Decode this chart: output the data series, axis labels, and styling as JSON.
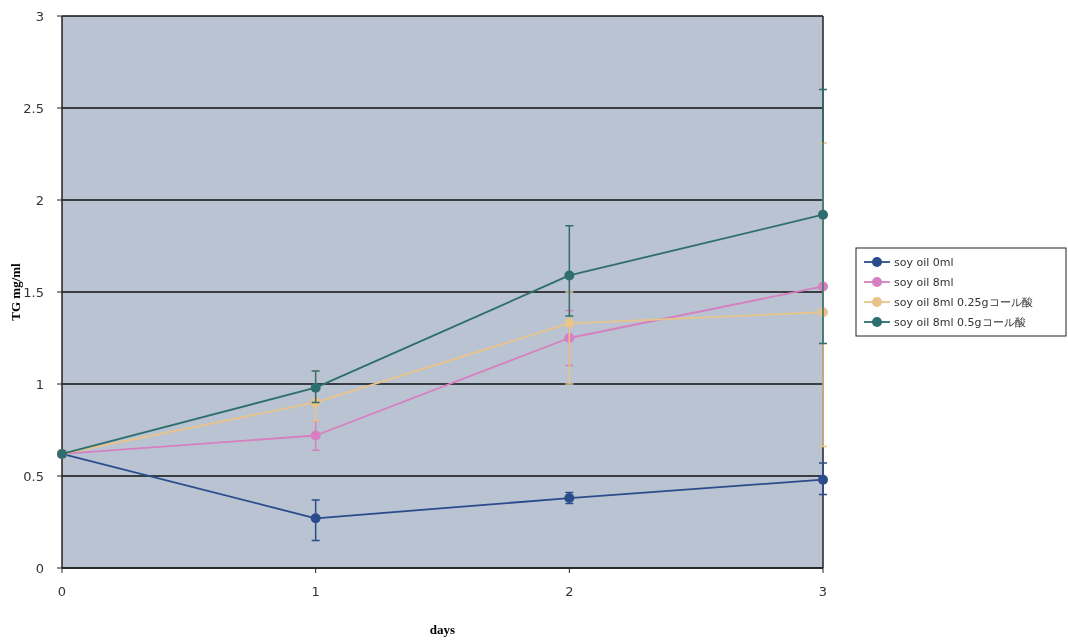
{
  "chart_data": {
    "type": "line",
    "xlabel": "days",
    "ylabel": "TG mg/ml",
    "x": [
      0,
      1,
      2,
      3
    ],
    "xlim": [
      0,
      3
    ],
    "xticks": [
      0,
      1,
      2,
      3
    ],
    "ylim": [
      0,
      3
    ],
    "yticks": [
      0,
      0.5,
      1,
      1.5,
      2,
      2.5,
      3
    ],
    "grid": "y",
    "legend": "right",
    "marker": "circle",
    "series": [
      {
        "name": "soy oil 0ml",
        "color": "#2b4c8c",
        "values": [
          0.62,
          0.27,
          0.38,
          0.48
        ],
        "errors": [
          null,
          [
            0.15,
            0.37
          ],
          [
            0.35,
            0.41
          ],
          [
            0.4,
            0.57
          ]
        ]
      },
      {
        "name": "soy oil 8ml",
        "color": "#d77fc0",
        "values": [
          0.62,
          0.72,
          1.25,
          1.53
        ],
        "errors": [
          null,
          [
            0.64,
            0.8
          ],
          [
            1.1,
            1.4
          ],
          null
        ]
      },
      {
        "name": "soy oil 8ml 0.25gコール酸",
        "color": "#e8c48a",
        "values": [
          0.62,
          0.9,
          1.33,
          1.39
        ],
        "errors": [
          null,
          [
            0.8,
            1.07
          ],
          [
            1.0,
            1.5
          ],
          [
            0.66,
            2.31
          ]
        ]
      },
      {
        "name": "soy oil 8ml 0.5gコール酸",
        "color": "#2e6e6e",
        "values": [
          0.62,
          0.98,
          1.59,
          1.92
        ],
        "errors": [
          null,
          [
            0.9,
            1.07
          ],
          [
            1.37,
            1.86
          ],
          [
            1.22,
            2.6
          ]
        ]
      }
    ]
  }
}
